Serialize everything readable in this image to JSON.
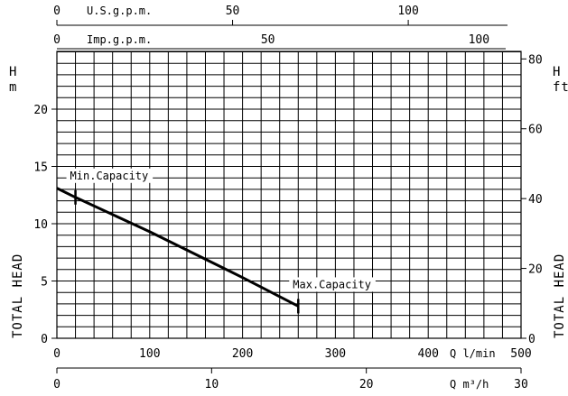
{
  "chart_data": {
    "type": "line",
    "series": [
      {
        "x": [
          0,
          20,
          100,
          200,
          260
        ],
        "y": [
          13.1,
          12.3,
          9.3,
          5.3,
          2.8
        ]
      }
    ],
    "ylabel_left": "TOTAL HEAD",
    "ylabel_right": "TOTAL HEAD",
    "y_unit_left": "H m",
    "y_unit_right": "H ft",
    "xlabel_lmin": "Q l/min",
    "xlabel_m3h": "Q m³/h",
    "xlabel_usgpm": "U.S.g.p.m.",
    "xlabel_impgpm": "Imp.g.p.m.",
    "xlim_lmin": [
      0,
      500
    ],
    "ylim_m": [
      0,
      25
    ],
    "xticks_lmin": [
      "0",
      "100",
      "200",
      "300",
      "400",
      "500"
    ],
    "xticks_m3h": [
      "0",
      "10",
      "20",
      "30"
    ],
    "xticks_usgpm": [
      "0",
      "50",
      "100"
    ],
    "xticks_impgpm": [
      "0",
      "50",
      "100"
    ],
    "yticks_m": [
      "0",
      "5",
      "10",
      "15",
      "20"
    ],
    "yticks_ft": [
      "0",
      "20",
      "40",
      "60",
      "80"
    ],
    "annotations": [
      {
        "text": "Min.Capacity",
        "x": 20,
        "y": 12.3
      },
      {
        "text": "Max.Capacity",
        "x": 260,
        "y": 2.8
      }
    ],
    "grid": true
  }
}
